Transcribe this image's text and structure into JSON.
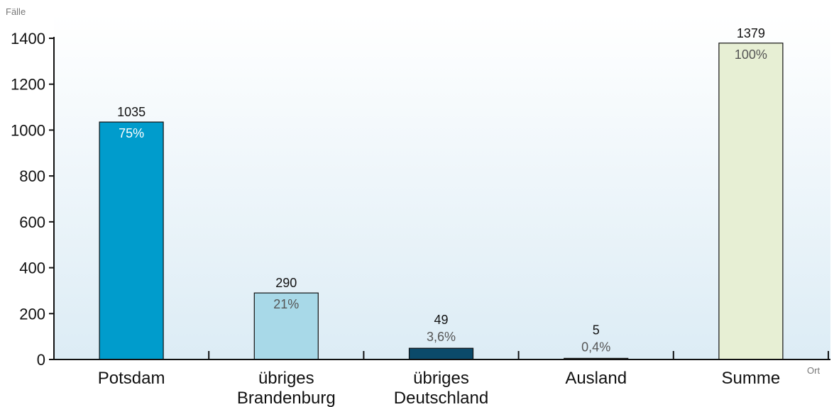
{
  "chart_data": {
    "type": "bar",
    "ylabel": "Fälle",
    "xlabel": "Ort",
    "ylim": [
      0,
      1400
    ],
    "yticks": [
      "0",
      "200",
      "400",
      "600",
      "800",
      "1000",
      "1200",
      "1400"
    ],
    "grid": false,
    "background_gradient": [
      "#ffffff",
      "#dcecf5"
    ],
    "categories": [
      [
        "Potsdam"
      ],
      [
        "übriges",
        "Brandenburg"
      ],
      [
        "übriges",
        "Deutschland"
      ],
      [
        "Ausland"
      ],
      [
        "Summe"
      ]
    ],
    "values": [
      1035,
      290,
      49,
      5,
      1379
    ],
    "value_labels": [
      "1035",
      "290",
      "49",
      "5",
      "1379"
    ],
    "percent_labels": [
      "75%",
      "21%",
      "3,6%",
      "0,4%",
      "100%"
    ],
    "bar_colors": [
      "#009ccc",
      "#a8d9e8",
      "#0b4a6a",
      "#2f4a1f",
      "#e7efd4"
    ],
    "percent_label_colors": [
      "#ffffff",
      "#555555",
      "#555555",
      "#555555",
      "#555555"
    ]
  }
}
